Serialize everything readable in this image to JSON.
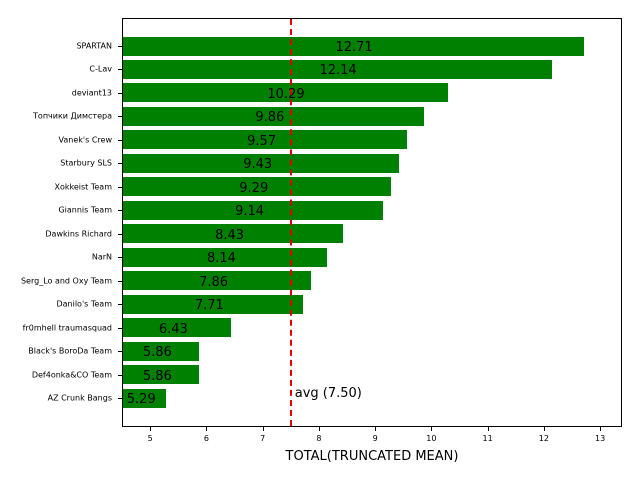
{
  "chart_data": {
    "type": "bar",
    "orientation": "horizontal",
    "title": "",
    "xlabel": "TOTAL(TRUNCATED MEAN)",
    "ylabel": "",
    "xlim": [
      4.5,
      13.39
    ],
    "xticks": [
      5,
      6,
      7,
      8,
      9,
      10,
      11,
      12,
      13
    ],
    "grid": false,
    "bar_color": "#008000",
    "categories": [
      "SPARTAN",
      "C-Lav",
      "deviant13",
      "Топчики Димстера",
      "Vanek's Crew",
      "Starbury SLS",
      "Xokkeist Team",
      "Giannis Team",
      "Dawkins Richard",
      "NarN",
      "Serg_Lo and Oxy Team",
      "Danilo's Team",
      "fr0mhell traumasquad",
      "Black's BoroDa Team",
      "Def4onka&CO Team",
      "AZ Crunk Bangs"
    ],
    "values": [
      12.71,
      12.14,
      10.29,
      9.86,
      9.57,
      9.43,
      9.29,
      9.14,
      8.43,
      8.14,
      7.86,
      7.71,
      6.43,
      5.86,
      5.86,
      5.29
    ],
    "value_labels": [
      "12.71",
      "12.14",
      "10.29",
      "9.86",
      "9.57",
      "9.43",
      "9.29",
      "9.14",
      "8.43",
      "8.14",
      "7.86",
      "7.71",
      "6.43",
      "5.86",
      "5.86",
      "5.29"
    ],
    "reference_line": {
      "x": 7.5,
      "label": "avg (7.50)",
      "color": "#e00000",
      "style": "dashed"
    }
  }
}
